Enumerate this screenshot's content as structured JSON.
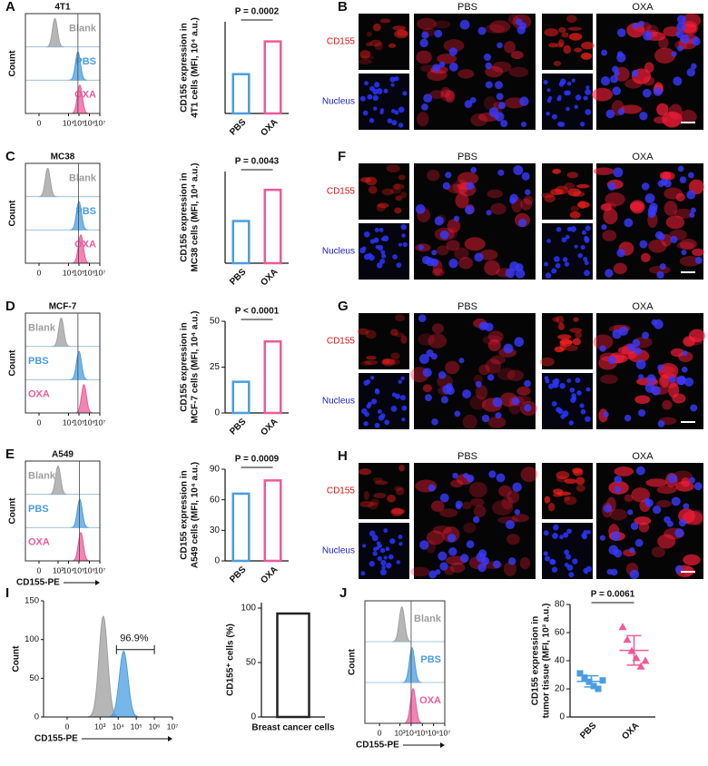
{
  "chart_data": [
    {
      "type": "density",
      "panel": "A",
      "title": "4T1",
      "ylabel": "Count",
      "xscale": "biexponential",
      "xlim": [
        -300,
        10000000
      ],
      "xticks": [
        0,
        {
          "value": 10000,
          "label": "10⁴"
        },
        {
          "value": 100000,
          "label": "10⁵"
        },
        {
          "value": 1000000,
          "label": "10⁶"
        },
        {
          "value": 10000000,
          "label": "10⁷"
        }
      ],
      "gate": 80000,
      "series": [
        {
          "name": "Blank",
          "color": "#9e9e9e",
          "peak": 500
        },
        {
          "name": "PBS",
          "color": "#4a9de0",
          "peak": 80000
        },
        {
          "name": "OXA",
          "color": "#ee5a9a",
          "peak": 120000
        }
      ]
    },
    {
      "type": "bar",
      "ylabel": [
        "CD155 expression in",
        "4T1 cells (MFI, 10⁴ a.u.)"
      ],
      "categories": [
        "PBS",
        "OXA"
      ],
      "values": [
        6,
        11
      ],
      "colors": [
        "#4a9de0",
        "#ee5a9a"
      ],
      "ylim": [
        0,
        14
      ],
      "annotation": "P = 0.0002"
    },
    {
      "type": "density",
      "panel": "C",
      "title": "MC38",
      "ylabel": "Count",
      "xscale": "biexponential",
      "xlim": [
        -300,
        10000000
      ],
      "xticks": [
        0,
        {
          "value": 10000,
          "label": "10⁴"
        },
        {
          "value": 100000,
          "label": "10⁵"
        },
        {
          "value": 1000000,
          "label": "10⁶"
        },
        {
          "value": 10000000,
          "label": "10⁷"
        }
      ],
      "gate": 90000,
      "series": [
        {
          "name": "Blank",
          "color": "#9e9e9e",
          "peak": 100
        },
        {
          "name": "PBS",
          "color": "#4a9de0",
          "peak": 100000
        },
        {
          "name": "OXA",
          "color": "#ee5a9a",
          "peak": 150000
        }
      ]
    },
    {
      "type": "bar",
      "ylabel": [
        "CD155 expression in",
        "MC38 cells (MFI, 10⁴ a.u.)"
      ],
      "categories": [
        "PBS",
        "OXA"
      ],
      "values": [
        11.5,
        20
      ],
      "colors": [
        "#4a9de0",
        "#ee5a9a"
      ],
      "ylim": [
        0,
        25
      ],
      "annotation": "P = 0.0043"
    },
    {
      "type": "density",
      "panel": "D",
      "title": "MCF-7",
      "ylabel": "Count",
      "xscale": "biexponential",
      "xlim": [
        -300,
        10000000
      ],
      "xticks": [
        0,
        {
          "value": 10000,
          "label": "10⁴"
        },
        {
          "value": 100000,
          "label": "10⁵"
        },
        {
          "value": 1000000,
          "label": "10⁶"
        },
        {
          "value": 10000000,
          "label": "10⁷"
        }
      ],
      "gate": 80000,
      "series": [
        {
          "name": "Blank",
          "color": "#9e9e9e",
          "peak": 2000
        },
        {
          "name": "PBS",
          "color": "#4a9de0",
          "peak": 100000
        },
        {
          "name": "OXA",
          "color": "#ee5a9a",
          "peak": 300000
        }
      ]
    },
    {
      "type": "bar",
      "ylabel": [
        "CD155 expression in",
        "MCF-7 cells (MFI, 10⁴ a.u.)"
      ],
      "categories": [
        "PBS",
        "OXA"
      ],
      "values": [
        17,
        39
      ],
      "colors": [
        "#4a9de0",
        "#ee5a9a"
      ],
      "ylim": [
        0,
        50
      ],
      "yticks": [
        0,
        25,
        50
      ],
      "annotation": "P < 0.0001"
    },
    {
      "type": "density",
      "panel": "E",
      "title": "A549",
      "ylabel": "Count",
      "xlabel": "CD155-PE",
      "xscale": "biexponential",
      "xlim": [
        -300,
        10000000
      ],
      "xticks": [
        0,
        {
          "value": 1000,
          "label": "10³"
        },
        {
          "value": 10000,
          "label": "10⁴"
        },
        {
          "value": 100000,
          "label": "10⁵"
        },
        {
          "value": 1000000,
          "label": "10⁶"
        },
        {
          "value": 10000000,
          "label": "10⁷"
        }
      ],
      "gate": 110000,
      "series": [
        {
          "name": "Blank",
          "color": "#9e9e9e",
          "peak": 1000
        },
        {
          "name": "PBS",
          "color": "#4a9de0",
          "peak": 120000
        },
        {
          "name": "OXA",
          "color": "#ee5a9a",
          "peak": 150000
        }
      ]
    },
    {
      "type": "bar",
      "ylabel": [
        "CD155 expression in",
        "A549 cells (MFI, 10⁴ a.u.)"
      ],
      "categories": [
        "PBS",
        "OXA"
      ],
      "values": [
        66,
        79
      ],
      "colors": [
        "#4a9de0",
        "#ee5a9a"
      ],
      "ylim": [
        0,
        90
      ],
      "yticks": [
        0,
        30,
        60,
        90
      ],
      "annotation": "P = 0.0009"
    },
    {
      "type": "density",
      "panel": "I",
      "ylabel": "Count",
      "xlabel": "CD155-PE",
      "xscale": "biexponential",
      "xlim": [
        -300,
        10000000
      ],
      "xticks": [
        0,
        {
          "value": 1000,
          "label": "10³"
        },
        {
          "value": 10000,
          "label": "10⁴"
        },
        {
          "value": 100000,
          "label": "10⁵"
        },
        {
          "value": 1000000,
          "label": "10⁶"
        },
        {
          "value": 10000000,
          "label": "10⁷"
        }
      ],
      "ylim": [
        0,
        150
      ],
      "yticks": [
        0,
        50,
        100,
        150
      ],
      "gate": [
        8000,
        1000000
      ],
      "gate_label": "96.9%",
      "series": [
        {
          "color": "#9e9e9e",
          "peak": 1500,
          "height": 130
        },
        {
          "color": "#4a9de0",
          "peak": 20000,
          "height": 85
        }
      ]
    },
    {
      "type": "bar",
      "ylabel": [
        "CD155⁺ cells (%)"
      ],
      "categories": [
        "Breast cancer cells"
      ],
      "values": [
        95
      ],
      "colors": [
        "#222222"
      ],
      "ylim": [
        0,
        105
      ],
      "yticks": [
        0,
        50,
        100
      ]
    },
    {
      "type": "density",
      "panel": "J",
      "ylabel": "Count",
      "xlabel": "CD155-PE",
      "xscale": "biexponential",
      "xlim": [
        -300,
        10000000
      ],
      "xticks": [
        0,
        {
          "value": 1000,
          "label": "10³"
        },
        {
          "value": 10000,
          "label": "10⁴"
        },
        {
          "value": 100000,
          "label": "10⁵"
        },
        {
          "value": 1000000,
          "label": "10⁶"
        },
        {
          "value": 10000000,
          "label": "10⁷"
        }
      ],
      "gate": 10000,
      "series": [
        {
          "name": "Blank",
          "color": "#9e9e9e",
          "peak": 1500
        },
        {
          "name": "PBS",
          "color": "#4a9de0",
          "peak": 12000
        },
        {
          "name": "OXA",
          "color": "#ee5a9a",
          "peak": 15000
        }
      ]
    },
    {
      "type": "scatter",
      "ylabel": [
        "CD155 expression in",
        "tumor tissue (MFI, 10³ a.u.)"
      ],
      "categories": [
        "PBS",
        "OXA"
      ],
      "ylim": [
        0,
        80
      ],
      "yticks": [
        0,
        20,
        40,
        60,
        80
      ],
      "annotation": "P = 0.0061",
      "series": [
        {
          "color": "#4a9de0",
          "marker": "square",
          "values": [
            31,
            28,
            25,
            22,
            20,
            26
          ]
        },
        {
          "color": "#ee5a9a",
          "marker": "triangle",
          "values": [
            64,
            55,
            47,
            42,
            36,
            40
          ]
        }
      ]
    }
  ],
  "micrographs": [
    {
      "panel": "B",
      "columns": [
        "PBS",
        "OXA"
      ],
      "rows": [
        "CD155",
        "Nucleus"
      ]
    },
    {
      "panel": "F",
      "columns": [
        "PBS",
        "OXA"
      ],
      "rows": [
        "CD155",
        "Nucleus"
      ]
    },
    {
      "panel": "G",
      "columns": [
        "PBS",
        "OXA"
      ],
      "rows": [
        "CD155",
        "Nucleus"
      ]
    },
    {
      "panel": "H",
      "columns": [
        "PBS",
        "OXA"
      ],
      "rows": [
        "CD155",
        "Nucleus"
      ]
    }
  ]
}
